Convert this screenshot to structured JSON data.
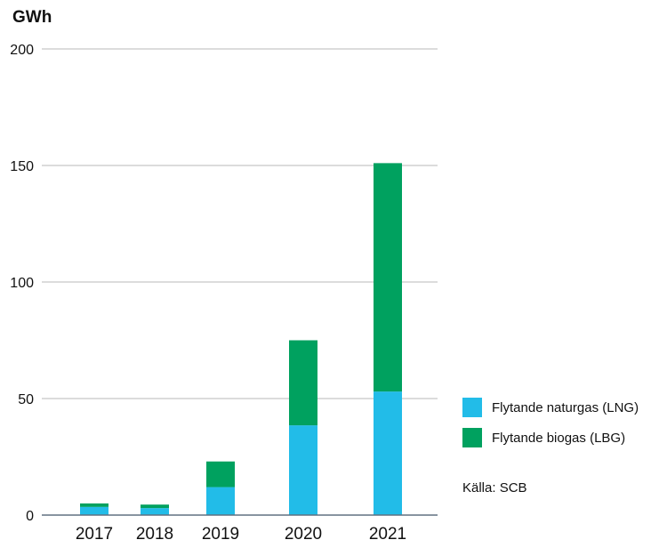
{
  "chart_data": {
    "type": "bar",
    "stacked": true,
    "categories": [
      "2017",
      "2018",
      "2019",
      "2020",
      "2021"
    ],
    "series": [
      {
        "name": "Flytande naturgas (LNG)",
        "color": "#22bce8",
        "values": [
          3.5,
          3,
          12,
          38.5,
          53
        ]
      },
      {
        "name": "Flytande biogas (LBG)",
        "color": "#00a15f",
        "values": [
          1.5,
          1.5,
          11,
          36.5,
          98
        ]
      }
    ],
    "ylabel": "GWh",
    "ylim": [
      0,
      200
    ],
    "yticks": [
      0,
      50,
      100,
      150,
      200
    ],
    "grid": true,
    "legend_position": "right"
  },
  "source": "Källa: SCB"
}
